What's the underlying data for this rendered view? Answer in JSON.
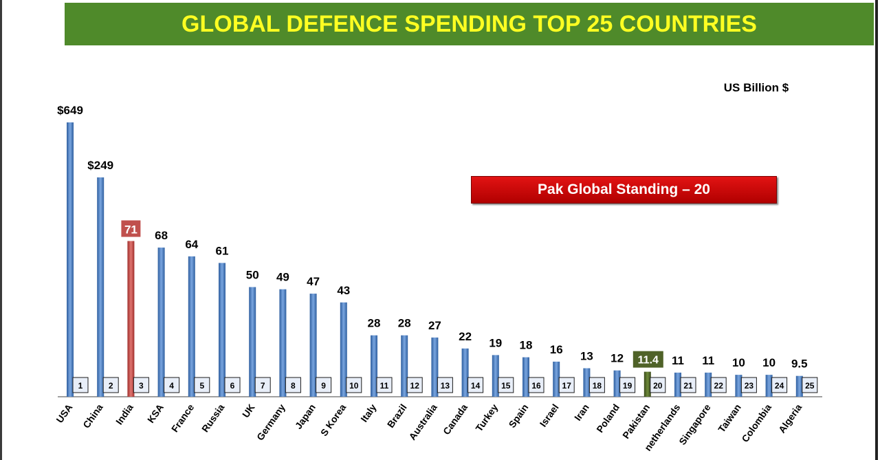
{
  "title": "GLOBAL DEFENCE SPENDING TOP 25 COUNTRIES",
  "units_label": "US Billion $",
  "callout": "Pak Global Standing – 20",
  "colors": {
    "banner": "#4f8a2a",
    "title_text": "#ffff22",
    "bar_default": "#4a7fc8",
    "bar_india": "#c0504d",
    "bar_pakistan": "#4f6228",
    "callout": "#d40000"
  },
  "chart_data": {
    "type": "bar",
    "categories": [
      "USA",
      "China",
      "India",
      "KSA",
      "France",
      "Russia",
      "UK",
      "Germany",
      "Japan",
      "S Korea",
      "Italy",
      "Brazil",
      "Australia",
      "Canada",
      "Turkey",
      "Spain",
      "Israel",
      "Iran",
      "Poland",
      "Pakistan",
      "netherlands",
      "Singapore",
      "Taiwan",
      "Colombia",
      "Algeria"
    ],
    "values": [
      649,
      249,
      71,
      68,
      64,
      61,
      50,
      49,
      47,
      43,
      28,
      28,
      27,
      22,
      19,
      18,
      16,
      13,
      12,
      11.4,
      11,
      11,
      10,
      10,
      9.5
    ],
    "value_labels": [
      "$649",
      "$249",
      "71",
      "68",
      "64",
      "61",
      "50",
      "49",
      "47",
      "43",
      "28",
      "28",
      "27",
      "22",
      "19",
      "18",
      "16",
      "13",
      "12",
      "11.4",
      "11",
      "11",
      "10",
      "10",
      "9.5"
    ],
    "ranks": [
      "1",
      "2",
      "3",
      "4",
      "5",
      "6",
      "7",
      "8",
      "9",
      "10",
      "11",
      "12",
      "13",
      "14",
      "15",
      "16",
      "17",
      "18",
      "19",
      "20",
      "21",
      "22",
      "23",
      "24",
      "25"
    ],
    "highlight": {
      "India": "red",
      "Pakistan": "green"
    },
    "axis_break": "upper values compressed (broken scale)"
  }
}
